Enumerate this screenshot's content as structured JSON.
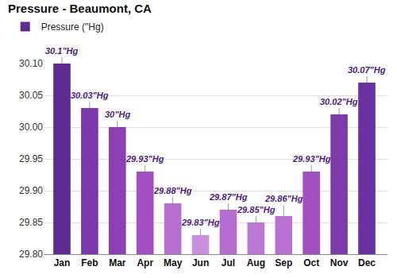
{
  "chart_data": {
    "type": "bar",
    "title": "Pressure - Beaumont, CA",
    "categories": [
      "Jan",
      "Feb",
      "Mar",
      "Apr",
      "May",
      "Jun",
      "Jul",
      "Aug",
      "Sep",
      "Oct",
      "Nov",
      "Dec"
    ],
    "series": [
      {
        "name": "Pressure (\"Hg)",
        "values": [
          30.1,
          30.03,
          30,
          29.93,
          29.88,
          29.83,
          29.87,
          29.85,
          29.86,
          29.93,
          30.02,
          30.07
        ],
        "value_labels": [
          "30.1\"Hg",
          "30.03\"Hg",
          "30\"Hg",
          "29.93\"Hg",
          "29.88\"Hg",
          "29.83\"Hg",
          "29.87\"Hg",
          "29.85\"Hg",
          "29.86\"Hg",
          "29.93\"Hg",
          "30.02\"Hg",
          "30.07\"Hg"
        ],
        "colors": [
          "#5e2a92",
          "#7a38a8",
          "#8a40b2",
          "#a34fc2",
          "#b56fcf",
          "#c98fde",
          "#b46ccf",
          "#bb78d4",
          "#b873d2",
          "#a34fc2",
          "#7c3aaa",
          "#6a31a0"
        ]
      }
    ],
    "ylim": [
      29.8,
      30.1
    ],
    "yticks": [
      {
        "value": 29.8,
        "label": "29.80"
      },
      29.85,
      {
        "value": 29.9,
        "label": "29.90"
      },
      29.95,
      {
        "value": 30,
        "label": "30.00"
      },
      30.05,
      {
        "value": 30.1,
        "label": "30.10"
      }
    ],
    "grid": true,
    "legend": "top-left",
    "data_labels": true
  }
}
